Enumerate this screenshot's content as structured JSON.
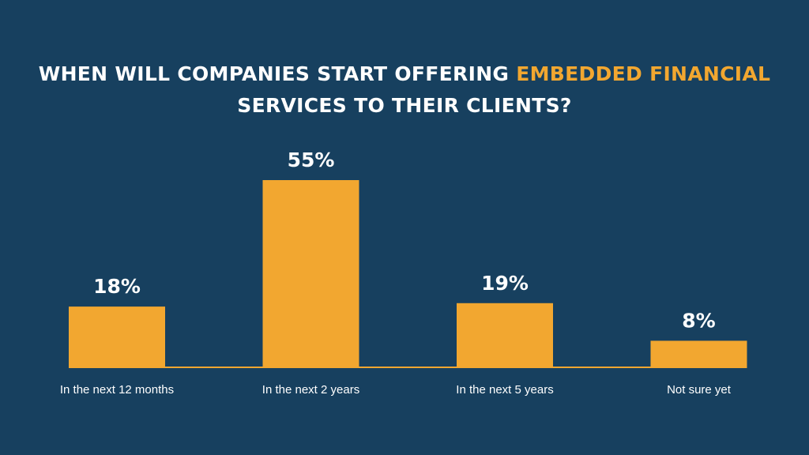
{
  "title": {
    "line1_plain": "WHEN WILL COMPANIES START OFFERING ",
    "line1_highlight": "EMBEDDED FINANCIAL",
    "line2": "SERVICES TO THEIR CLIENTS?"
  },
  "colors": {
    "background": "#17405f",
    "accent": "#f2a730",
    "text": "#ffffff"
  },
  "chart_data": {
    "type": "bar",
    "categories": [
      "In the next 12 months",
      "In the next 2 years",
      "In the next 5 years",
      "Not sure yet"
    ],
    "values": [
      18,
      55,
      19,
      8
    ],
    "value_labels": [
      "18%",
      "55%",
      "19%",
      "8%"
    ],
    "title": "WHEN WILL COMPANIES START OFFERING EMBEDDED FINANCIAL SERVICES TO THEIR CLIENTS?",
    "xlabel": "",
    "ylabel": "",
    "ylim": [
      0,
      55
    ],
    "grid": false,
    "legend": "none",
    "baseline": true
  }
}
